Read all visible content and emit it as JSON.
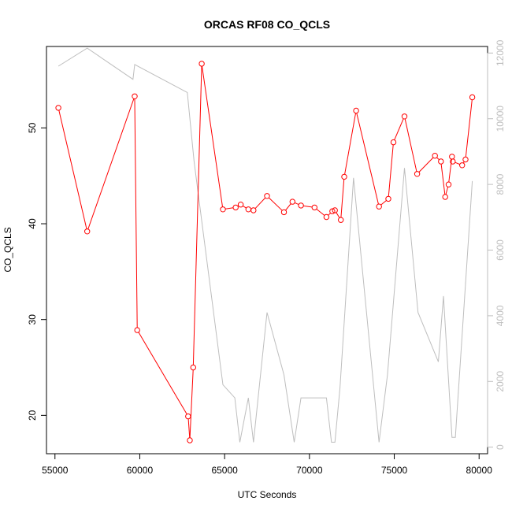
{
  "chart_data": {
    "type": "line",
    "title": "ORCAS RF08 CO_QCLS",
    "xlabel": "UTC Seconds",
    "ylabel": "CO_QCLS",
    "xlim": [
      54500,
      80500
    ],
    "ylim": [
      16,
      58.5
    ],
    "y2lim": [
      -200,
      12200
    ],
    "x_ticks": [
      55000,
      60000,
      65000,
      70000,
      75000,
      80000
    ],
    "y_ticks": [
      20,
      30,
      40,
      50
    ],
    "y2_ticks": [
      0,
      2000,
      4000,
      6000,
      8000,
      10000,
      12000
    ],
    "grid": false,
    "colors": {
      "primary": "#ff0000",
      "secondary": "#bebebe",
      "axes": "#000000"
    },
    "series": [
      {
        "axis": "left",
        "style": "line+circle",
        "x": [
          55200,
          56900,
          59700,
          59850,
          62850,
          62950,
          63150,
          63650,
          64900,
          65650,
          65950,
          66400,
          66700,
          67500,
          68500,
          69000,
          69500,
          70300,
          71000,
          71350,
          71500,
          71850,
          72050,
          72750,
          74100,
          74650,
          74950,
          75600,
          76350,
          77400,
          77750,
          78000,
          78200,
          78400,
          78450,
          79000,
          79200,
          79600
        ],
        "y": [
          52.1,
          39.2,
          53.3,
          28.9,
          19.9,
          17.4,
          25.0,
          56.7,
          41.5,
          41.7,
          42.0,
          41.5,
          41.4,
          42.9,
          41.2,
          42.3,
          41.9,
          41.7,
          40.7,
          41.3,
          41.4,
          40.4,
          44.9,
          51.8,
          41.8,
          42.6,
          48.5,
          51.2,
          45.2,
          47.1,
          46.5,
          42.8,
          44.1,
          47.0,
          46.5,
          46.1,
          46.7,
          53.2
        ]
      },
      {
        "axis": "right",
        "style": "line",
        "x": [
          55200,
          56900,
          59600,
          59700,
          62800,
          63200,
          63500,
          64900,
          65600,
          65900,
          66400,
          66700,
          67500,
          68500,
          69100,
          69500,
          71000,
          71300,
          71500,
          71800,
          72600,
          74100,
          74600,
          75600,
          76400,
          77600,
          77900,
          78400,
          78600,
          79600
        ],
        "y": [
          11600,
          12150,
          11200,
          11650,
          10800,
          8700,
          7500,
          1900,
          1500,
          150,
          1500,
          150,
          4100,
          2200,
          150,
          1500,
          1500,
          150,
          150,
          1800,
          8200,
          150,
          2200,
          8500,
          4100,
          2600,
          4600,
          300,
          300,
          8100
        ]
      }
    ]
  }
}
